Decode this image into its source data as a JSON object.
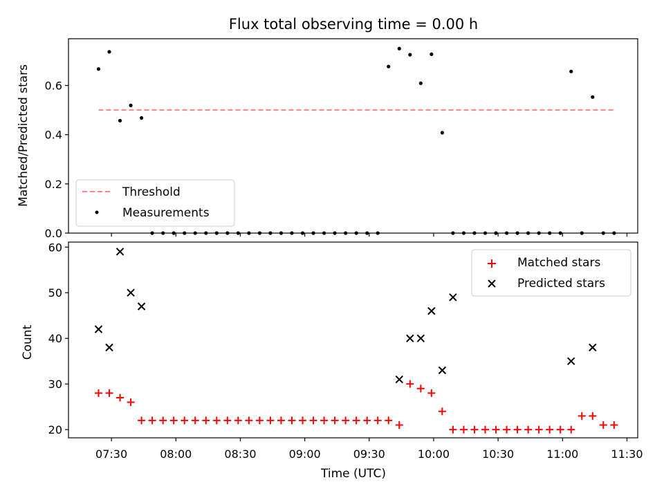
{
  "colors": {
    "threshold": "#ff8080",
    "measurement": "#000000",
    "matched": "#ff0000",
    "predicted": "#000000"
  },
  "chart_data": [
    {
      "type": "scatter",
      "title": "Flux total observing time = 0.00 h",
      "xlabel": "",
      "ylabel": "Matched/Predicted stars",
      "xlim": [
        "07:10",
        "11:35"
      ],
      "ylim": [
        0.0,
        0.79
      ],
      "yticks": [
        0.0,
        0.2,
        0.4,
        0.6
      ],
      "ytick_labels": [
        "0.0",
        "0.2",
        "0.4",
        "0.6"
      ],
      "grid": false,
      "legend": {
        "position": "lower-left",
        "entries": [
          {
            "label": "Threshold",
            "kind": "dashed-line",
            "color": "#ff8080"
          },
          {
            "label": "Measurements",
            "kind": "dot",
            "color": "#000000"
          }
        ]
      },
      "threshold": {
        "name": "Threshold",
        "value": 0.5,
        "x_start": "07:24",
        "x_end": "11:24",
        "style": "dashed"
      },
      "series": [
        {
          "name": "Measurements",
          "marker": "dot",
          "x": [
            "07:24",
            "07:29",
            "07:34",
            "07:39",
            "07:44",
            "07:49",
            "07:54",
            "07:59",
            "08:04",
            "08:09",
            "08:14",
            "08:19",
            "08:24",
            "08:29",
            "08:34",
            "08:39",
            "08:44",
            "08:49",
            "08:54",
            "08:59",
            "09:04",
            "09:09",
            "09:14",
            "09:19",
            "09:24",
            "09:29",
            "09:34",
            "09:39",
            "09:44",
            "09:49",
            "09:54",
            "09:59",
            "10:04",
            "10:09",
            "10:14",
            "10:19",
            "10:24",
            "10:29",
            "10:34",
            "10:39",
            "10:44",
            "10:49",
            "10:54",
            "10:59",
            "11:04",
            "11:09",
            "11:14",
            "11:19",
            "11:24"
          ],
          "values": [
            0.667,
            0.737,
            0.457,
            0.519,
            0.468,
            0.0,
            0.0,
            0.0,
            0.0,
            0.0,
            0.0,
            0.0,
            0.0,
            0.0,
            0.0,
            0.0,
            0.0,
            0.0,
            0.0,
            0.0,
            0.0,
            0.0,
            0.0,
            0.0,
            0.0,
            0.0,
            0.0,
            0.677,
            0.75,
            0.725,
            0.609,
            0.727,
            0.408,
            0.0,
            0.0,
            0.0,
            0.0,
            0.0,
            0.0,
            0.0,
            0.0,
            0.0,
            0.0,
            0.0,
            0.657,
            0.0,
            0.553,
            0.0,
            0.0
          ]
        }
      ]
    },
    {
      "type": "scatter",
      "title": "",
      "xlabel": "Time (UTC)",
      "ylabel": "Count",
      "xlim": [
        "07:10",
        "11:35"
      ],
      "ylim": [
        18.2,
        61.1
      ],
      "yticks": [
        20,
        30,
        40,
        50,
        60
      ],
      "ytick_labels": [
        "20",
        "30",
        "40",
        "50",
        "60"
      ],
      "xticks": [
        "07:30",
        "08:00",
        "08:30",
        "09:00",
        "09:30",
        "10:00",
        "10:30",
        "11:00",
        "11:30"
      ],
      "xtick_labels": [
        "07:30",
        "08:00",
        "08:30",
        "09:00",
        "09:30",
        "10:00",
        "10:30",
        "11:00",
        "11:30"
      ],
      "grid": false,
      "legend": {
        "position": "upper-right",
        "entries": [
          {
            "label": "Matched stars",
            "kind": "plus",
            "color": "#ff0000"
          },
          {
            "label": "Predicted stars",
            "kind": "cross",
            "color": "#000000"
          }
        ]
      },
      "series": [
        {
          "name": "Matched stars",
          "marker": "plus",
          "x": [
            "07:24",
            "07:29",
            "07:34",
            "07:39",
            "07:44",
            "07:49",
            "07:54",
            "07:59",
            "08:04",
            "08:09",
            "08:14",
            "08:19",
            "08:24",
            "08:29",
            "08:34",
            "08:39",
            "08:44",
            "08:49",
            "08:54",
            "08:59",
            "09:04",
            "09:09",
            "09:14",
            "09:19",
            "09:24",
            "09:29",
            "09:34",
            "09:39",
            "09:44",
            "09:49",
            "09:54",
            "09:59",
            "10:04",
            "10:09",
            "10:14",
            "10:19",
            "10:24",
            "10:29",
            "10:34",
            "10:39",
            "10:44",
            "10:49",
            "10:54",
            "10:59",
            "11:04",
            "11:09",
            "11:14",
            "11:19",
            "11:24"
          ],
          "values": [
            28,
            28,
            27,
            26,
            22,
            22,
            22,
            22,
            22,
            22,
            22,
            22,
            22,
            22,
            22,
            22,
            22,
            22,
            22,
            22,
            22,
            22,
            22,
            22,
            22,
            22,
            22,
            22,
            21,
            30,
            29,
            28,
            24,
            20,
            20,
            20,
            20,
            20,
            20,
            20,
            20,
            20,
            20,
            20,
            20,
            23,
            23,
            21,
            21
          ]
        },
        {
          "name": "Predicted stars",
          "marker": "cross",
          "x": [
            "07:24",
            "07:29",
            "07:34",
            "07:39",
            "07:44",
            "09:44",
            "09:49",
            "09:54",
            "09:59",
            "10:04",
            "10:09",
            "11:04",
            "11:14"
          ],
          "values": [
            42,
            38,
            59,
            50,
            47,
            31,
            40,
            40,
            46,
            33,
            49,
            35,
            38
          ]
        }
      ]
    }
  ]
}
